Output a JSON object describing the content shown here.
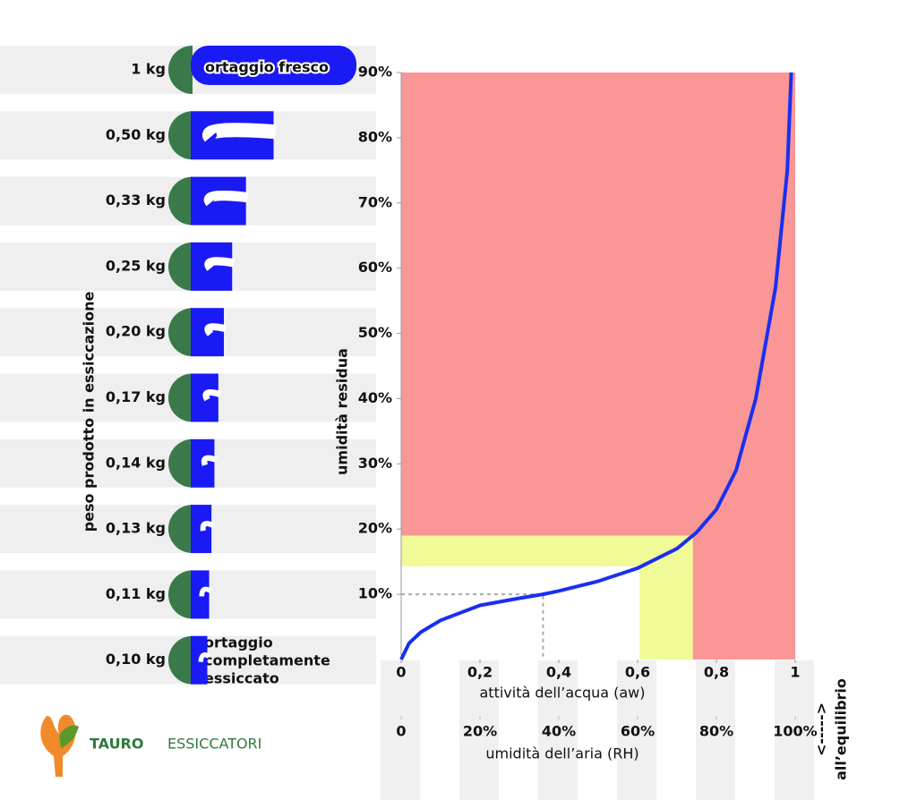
{
  "chart_data": {
    "type": "line",
    "x": [
      0,
      0.02,
      0.05,
      0.1,
      0.2,
      0.3,
      0.36,
      0.4,
      0.5,
      0.6,
      0.7,
      0.75,
      0.8,
      0.85,
      0.9,
      0.95,
      0.98,
      0.99
    ],
    "values": [
      0,
      2.5,
      4.2,
      6,
      8.3,
      9.4,
      10,
      10.5,
      12,
      14,
      17,
      19.5,
      23,
      29,
      40,
      57,
      75,
      90
    ],
    "color": "#1a2ff0",
    "xlim": [
      0,
      1
    ],
    "xticks": [
      0,
      {
        "value": 0.2,
        "label": "0,2"
      },
      {
        "value": 0.4,
        "label": "0,4"
      },
      {
        "value": 0.6,
        "label": "0,6"
      },
      {
        "value": 0.8,
        "label": "0,8"
      },
      1
    ],
    "x2lim": [
      0,
      100
    ],
    "x2ticks": [
      0,
      {
        "value": 20,
        "label": "20%"
      },
      {
        "value": 40,
        "label": "40%"
      },
      {
        "value": 60,
        "label": "60%"
      },
      {
        "value": 80,
        "label": "80%"
      },
      {
        "value": 100,
        "label": "100%"
      }
    ],
    "ylim": [
      0,
      90
    ],
    "yticks": [
      {
        "value": 10,
        "label": "10%"
      },
      {
        "value": 20,
        "label": "20%"
      },
      {
        "value": 30,
        "label": "30%"
      },
      {
        "value": 40,
        "label": "40%"
      },
      {
        "value": 50,
        "label": "50%"
      },
      {
        "value": 60,
        "label": "60%"
      },
      {
        "value": 70,
        "label": "70%"
      },
      {
        "value": 80,
        "label": "80%"
      },
      {
        "value": 90,
        "label": "90%"
      }
    ],
    "grid": false,
    "xlabel": "attività dell’acqua (aw)",
    "x2label": "umidità dell’aria (RH)",
    "ylabel": "umidità residua",
    "zones": [
      {
        "color": "#fa9696",
        "xlim": [
          0,
          1
        ],
        "ylim": [
          19,
          90
        ]
      },
      {
        "color": "#fa9696",
        "xlim": [
          0.74,
          1
        ],
        "ylim": [
          0,
          19
        ]
      },
      {
        "color": "#f0fa96",
        "xlim": [
          0,
          0.74
        ],
        "ylim": [
          14.3,
          19
        ]
      },
      {
        "color": "#f0fa96",
        "xlim": [
          0.605,
          0.74
        ],
        "ylim": [
          0,
          14.3
        ]
      }
    ],
    "reference": {
      "x": 0.36,
      "y": 10
    },
    "side_label": "all’equilibrio",
    "side_arrow": "<----->"
  },
  "weights": [
    "1 kg",
    "0,50 kg",
    "0,33 kg",
    "0,25 kg",
    "0,20 kg",
    "0,17 kg",
    "0,14 kg",
    "0,13 kg",
    "0,11 kg",
    "0,10 kg"
  ],
  "weight_axis_label": "peso prodotto in essiccazione",
  "fresh_label": "ortaggio fresco",
  "dried_label": [
    "ortaggio",
    "completamente",
    "essiccato"
  ],
  "logo": {
    "first": "TAURO",
    "second": "ESSICCATORI"
  }
}
